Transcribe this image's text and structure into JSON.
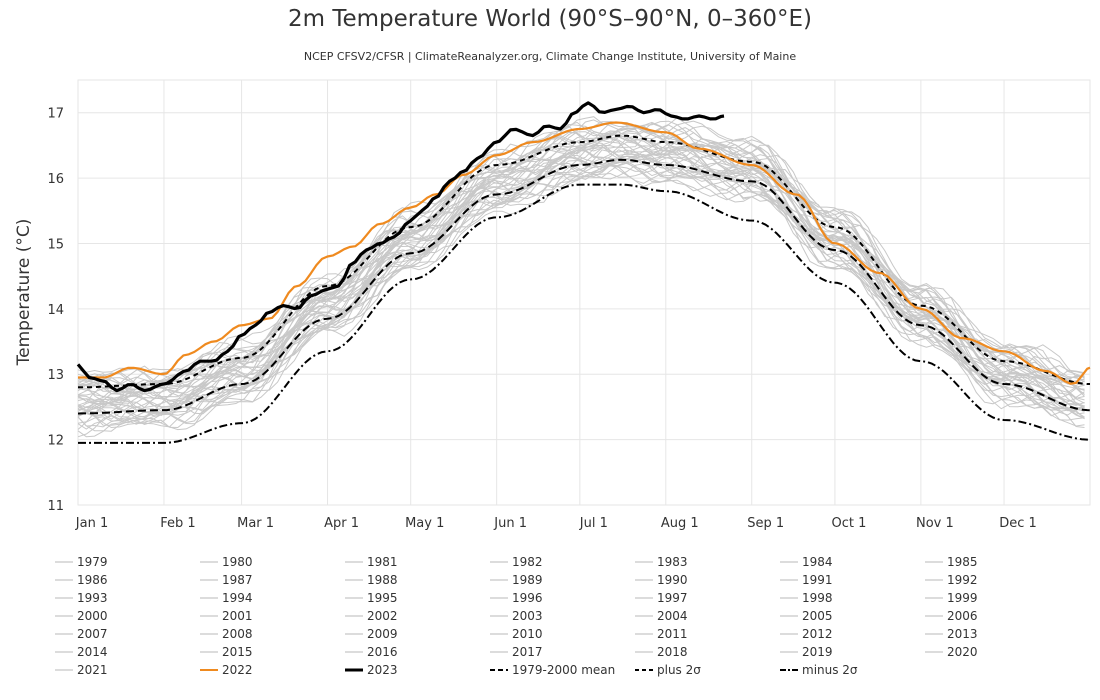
{
  "title": "2m Temperature World (90°S–90°N, 0–360°E)",
  "subtitle": "NCEP CFSV2/CFSR | ClimateReanalyzer.org, Climate Change Institute, University of Maine",
  "colors": {
    "historical": "#c8c8c8",
    "y2022": "#ef8a1f",
    "y2023": "#000000",
    "mean": "#000000",
    "grid": "#e6e6e6",
    "axis": "#333333"
  },
  "chart_data": {
    "type": "line",
    "title": "2m Temperature World (90°S–90°N, 0–360°E)",
    "xlabel": "",
    "ylabel": "Temperature (°C)",
    "xlim": [
      1,
      366
    ],
    "ylim": [
      11,
      17.5
    ],
    "yticks": [
      11,
      12,
      13,
      14,
      15,
      16,
      17
    ],
    "xtick_labels": [
      "Jan 1",
      "Feb 1",
      "Mar 1",
      "Apr 1",
      "May 1",
      "Jun 1",
      "Jul 1",
      "Aug 1",
      "Sep 1",
      "Oct 1",
      "Nov 1",
      "Dec 1"
    ],
    "xtick_days": [
      1,
      32,
      60,
      91,
      121,
      152,
      182,
      213,
      244,
      274,
      305,
      335
    ],
    "grid": true,
    "legend_position": "bottom",
    "historical_years": [
      "1979",
      "1980",
      "1981",
      "1982",
      "1983",
      "1984",
      "1985",
      "1986",
      "1987",
      "1988",
      "1989",
      "1990",
      "1991",
      "1992",
      "1993",
      "1994",
      "1995",
      "1996",
      "1997",
      "1998",
      "1999",
      "2000",
      "2001",
      "2002",
      "2003",
      "2004",
      "2005",
      "2006",
      "2007",
      "2008",
      "2009",
      "2010",
      "2011",
      "2012",
      "2013",
      "2014",
      "2015",
      "2016",
      "2017",
      "2018",
      "2019",
      "2020",
      "2021"
    ],
    "series": [
      {
        "name": "1979-2000 mean",
        "style": "dash",
        "x": [
          1,
          32,
          60,
          91,
          121,
          152,
          182,
          197,
          213,
          244,
          274,
          305,
          335,
          366
        ],
        "y": [
          12.4,
          12.45,
          12.85,
          13.85,
          14.85,
          15.75,
          16.2,
          16.28,
          16.2,
          15.95,
          14.9,
          13.75,
          12.85,
          12.45
        ]
      },
      {
        "name": "plus 2σ",
        "style": "short-dash",
        "x": [
          1,
          32,
          60,
          91,
          121,
          152,
          182,
          197,
          213,
          244,
          274,
          305,
          335,
          366
        ],
        "y": [
          12.8,
          12.85,
          13.25,
          14.35,
          15.25,
          16.2,
          16.55,
          16.65,
          16.55,
          16.25,
          15.25,
          14.05,
          13.2,
          12.85
        ]
      },
      {
        "name": "minus 2σ",
        "style": "dash-dot",
        "x": [
          1,
          32,
          60,
          91,
          121,
          152,
          182,
          197,
          213,
          244,
          274,
          305,
          335,
          366
        ],
        "y": [
          11.95,
          11.95,
          12.25,
          13.35,
          14.45,
          15.4,
          15.9,
          15.9,
          15.8,
          15.35,
          14.4,
          13.2,
          12.3,
          12.0
        ]
      },
      {
        "name": "2022",
        "style": "solid",
        "x": [
          1,
          10,
          20,
          32,
          40,
          50,
          60,
          70,
          80,
          91,
          100,
          110,
          121,
          130,
          140,
          152,
          165,
          182,
          195,
          213,
          225,
          244,
          260,
          274,
          290,
          305,
          320,
          335,
          350,
          360,
          366
        ],
        "y": [
          12.95,
          12.95,
          13.1,
          13.0,
          13.3,
          13.5,
          13.75,
          13.85,
          14.35,
          14.8,
          14.95,
          15.3,
          15.55,
          15.75,
          16.05,
          16.35,
          16.55,
          16.75,
          16.85,
          16.7,
          16.45,
          16.2,
          15.75,
          15.0,
          14.55,
          14.0,
          13.55,
          13.35,
          13.05,
          12.85,
          13.1
        ]
      },
      {
        "name": "2023",
        "style": "bold",
        "x": [
          1,
          5,
          10,
          15,
          20,
          25,
          32,
          40,
          45,
          50,
          55,
          60,
          65,
          70,
          75,
          80,
          85,
          91,
          95,
          100,
          105,
          110,
          115,
          121,
          125,
          130,
          135,
          140,
          145,
          152,
          158,
          165,
          170,
          175,
          180,
          185,
          190,
          195,
          200,
          205,
          210,
          215,
          220,
          225,
          230,
          234
        ],
        "y": [
          13.15,
          12.95,
          12.9,
          12.75,
          12.85,
          12.75,
          12.85,
          13.05,
          13.2,
          13.2,
          13.35,
          13.6,
          13.75,
          13.95,
          14.05,
          14.0,
          14.2,
          14.3,
          14.35,
          14.7,
          14.9,
          15.0,
          15.1,
          15.35,
          15.5,
          15.7,
          15.95,
          16.1,
          16.3,
          16.55,
          16.75,
          16.65,
          16.8,
          16.75,
          17.0,
          17.15,
          17.0,
          17.05,
          17.1,
          17.0,
          17.05,
          16.95,
          16.9,
          16.95,
          16.9,
          16.95
        ]
      }
    ]
  },
  "legend": {
    "items": [
      "1979",
      "1980",
      "1981",
      "1982",
      "1983",
      "1984",
      "1985",
      "1986",
      "1987",
      "1988",
      "1989",
      "1990",
      "1991",
      "1992",
      "1993",
      "1994",
      "1995",
      "1996",
      "1997",
      "1998",
      "1999",
      "2000",
      "2001",
      "2002",
      "2003",
      "2004",
      "2005",
      "2006",
      "2007",
      "2008",
      "2009",
      "2010",
      "2011",
      "2012",
      "2013",
      "2014",
      "2015",
      "2016",
      "2017",
      "2018",
      "2019",
      "2020",
      "2021",
      "2022",
      "2023",
      "1979-2000 mean",
      "plus 2σ",
      "minus 2σ"
    ]
  }
}
